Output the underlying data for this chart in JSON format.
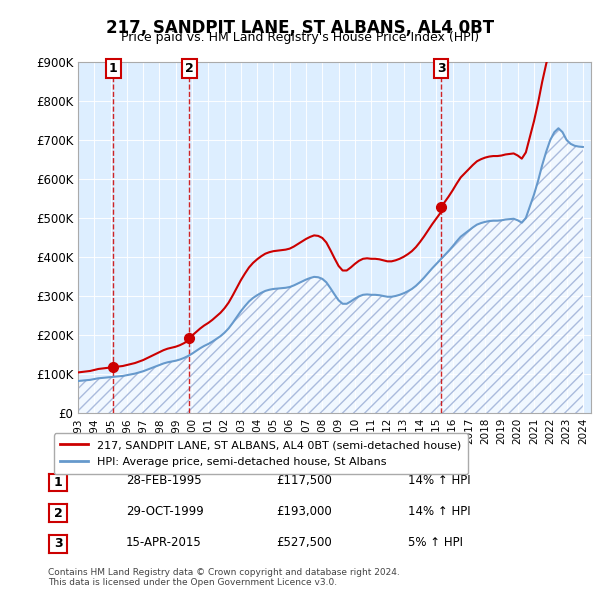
{
  "title": "217, SANDPIT LANE, ST ALBANS, AL4 0BT",
  "subtitle": "Price paid vs. HM Land Registry's House Price Index (HPI)",
  "legend_label_red": "217, SANDPIT LANE, ST ALBANS, AL4 0BT (semi-detached house)",
  "legend_label_blue": "HPI: Average price, semi-detached house, St Albans",
  "footer": "Contains HM Land Registry data © Crown copyright and database right 2024.\nThis data is licensed under the Open Government Licence v3.0.",
  "transactions": [
    {
      "num": 1,
      "date": "28-FEB-1995",
      "price": 117500,
      "year": 1995.16,
      "hpi_pct": "14%",
      "direction": "↑"
    },
    {
      "num": 2,
      "date": "29-OCT-1999",
      "price": 193000,
      "year": 1999.83,
      "hpi_pct": "14%",
      "direction": "↑"
    },
    {
      "num": 3,
      "date": "15-APR-2015",
      "price": 527500,
      "year": 2015.29,
      "hpi_pct": "5%",
      "direction": "↑"
    }
  ],
  "hpi_data": {
    "years": [
      1993.0,
      1993.25,
      1993.5,
      1993.75,
      1994.0,
      1994.25,
      1994.5,
      1994.75,
      1995.0,
      1995.25,
      1995.5,
      1995.75,
      1996.0,
      1996.25,
      1996.5,
      1996.75,
      1997.0,
      1997.25,
      1997.5,
      1997.75,
      1998.0,
      1998.25,
      1998.5,
      1998.75,
      1999.0,
      1999.25,
      1999.5,
      1999.75,
      2000.0,
      2000.25,
      2000.5,
      2000.75,
      2001.0,
      2001.25,
      2001.5,
      2001.75,
      2002.0,
      2002.25,
      2002.5,
      2002.75,
      2003.0,
      2003.25,
      2003.5,
      2003.75,
      2004.0,
      2004.25,
      2004.5,
      2004.75,
      2005.0,
      2005.25,
      2005.5,
      2005.75,
      2006.0,
      2006.25,
      2006.5,
      2006.75,
      2007.0,
      2007.25,
      2007.5,
      2007.75,
      2008.0,
      2008.25,
      2008.5,
      2008.75,
      2009.0,
      2009.25,
      2009.5,
      2009.75,
      2010.0,
      2010.25,
      2010.5,
      2010.75,
      2011.0,
      2011.25,
      2011.5,
      2011.75,
      2012.0,
      2012.25,
      2012.5,
      2012.75,
      2013.0,
      2013.25,
      2013.5,
      2013.75,
      2014.0,
      2014.25,
      2014.5,
      2014.75,
      2015.0,
      2015.25,
      2015.5,
      2015.75,
      2016.0,
      2016.25,
      2016.5,
      2016.75,
      2017.0,
      2017.25,
      2017.5,
      2017.75,
      2018.0,
      2018.25,
      2018.5,
      2018.75,
      2019.0,
      2019.25,
      2019.5,
      2019.75,
      2020.0,
      2020.25,
      2020.5,
      2020.75,
      2021.0,
      2021.25,
      2021.5,
      2021.75,
      2022.0,
      2022.25,
      2022.5,
      2022.75,
      2023.0,
      2023.25,
      2023.5,
      2023.75,
      2024.0
    ],
    "values": [
      82000,
      83000,
      84000,
      85000,
      87000,
      89000,
      90000,
      91000,
      92000,
      93000,
      94000,
      95000,
      97000,
      99000,
      101000,
      104000,
      107000,
      111000,
      115000,
      119000,
      123000,
      127000,
      130000,
      132000,
      134000,
      137000,
      141000,
      146000,
      152000,
      159000,
      166000,
      172000,
      177000,
      183000,
      190000,
      197000,
      206000,
      217000,
      231000,
      246000,
      261000,
      274000,
      286000,
      295000,
      302000,
      308000,
      313000,
      316000,
      318000,
      319000,
      320000,
      321000,
      323000,
      327000,
      332000,
      337000,
      342000,
      346000,
      349000,
      348000,
      344000,
      335000,
      320000,
      304000,
      289000,
      280000,
      280000,
      286000,
      293000,
      299000,
      303000,
      304000,
      303000,
      303000,
      302000,
      300000,
      298000,
      298000,
      300000,
      303000,
      307000,
      312000,
      318000,
      326000,
      336000,
      347000,
      359000,
      371000,
      382000,
      393000,
      404000,
      415000,
      427000,
      440000,
      452000,
      460000,
      468000,
      476000,
      483000,
      487000,
      490000,
      492000,
      493000,
      493000,
      494000,
      496000,
      497000,
      498000,
      494000,
      488000,
      500000,
      530000,
      560000,
      595000,
      635000,
      670000,
      700000,
      720000,
      730000,
      720000,
      700000,
      690000,
      685000,
      683000,
      682000
    ]
  },
  "price_paid_data": {
    "years": [
      1995.16,
      1999.83,
      2015.29
    ],
    "values": [
      117500,
      193000,
      527500
    ]
  },
  "ylim": [
    0,
    900000
  ],
  "xlim": [
    1993.0,
    2024.5
  ],
  "red_color": "#cc0000",
  "blue_color": "#6699cc",
  "hatch_color": "#aabbdd",
  "background_color": "#ffffff",
  "plot_bg_color": "#ddeeff"
}
